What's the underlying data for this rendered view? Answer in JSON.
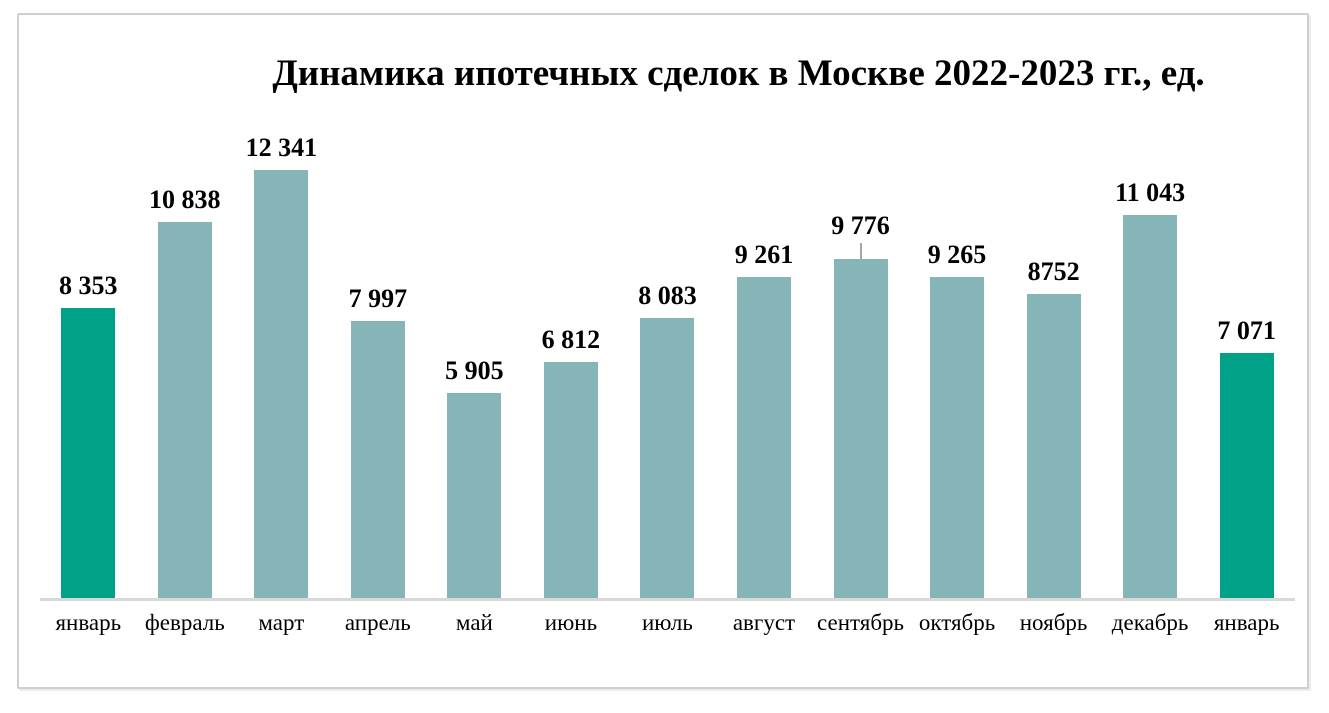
{
  "chart_data": {
    "type": "bar",
    "title": "Динамика ипотечных сделок в Москве 2022-2023 гг., ед.",
    "categories": [
      "январь",
      "февраль",
      "март",
      "апрель",
      "май",
      "июнь",
      "июль",
      "август",
      "сентябрь",
      "октябрь",
      "ноябрь",
      "декабрь",
      "январь"
    ],
    "values": [
      8353,
      10838,
      12341,
      7997,
      5905,
      6812,
      8083,
      9261,
      9776,
      9265,
      8752,
      11043,
      7071
    ],
    "value_labels": [
      "8 353",
      "10 838",
      "12 341",
      "7 997",
      "5 905",
      "6 812",
      "8 083",
      "9 261",
      "9 776",
      "9 265",
      "8752",
      "11 043",
      "7 071"
    ],
    "highlight_indices": [
      0,
      12
    ],
    "callout_leader_index": 8,
    "colors": {
      "highlight_bar": "#00A287",
      "default_bar": "#86B5B7",
      "axis_line": "#D9D9D9",
      "leader_line": "#A6A6A6",
      "text": "#000000"
    },
    "xlabel": "",
    "ylabel": "",
    "ylim": [
      0,
      12341
    ],
    "grid": false,
    "legend": false,
    "data_labels_position": "above-bar"
  }
}
